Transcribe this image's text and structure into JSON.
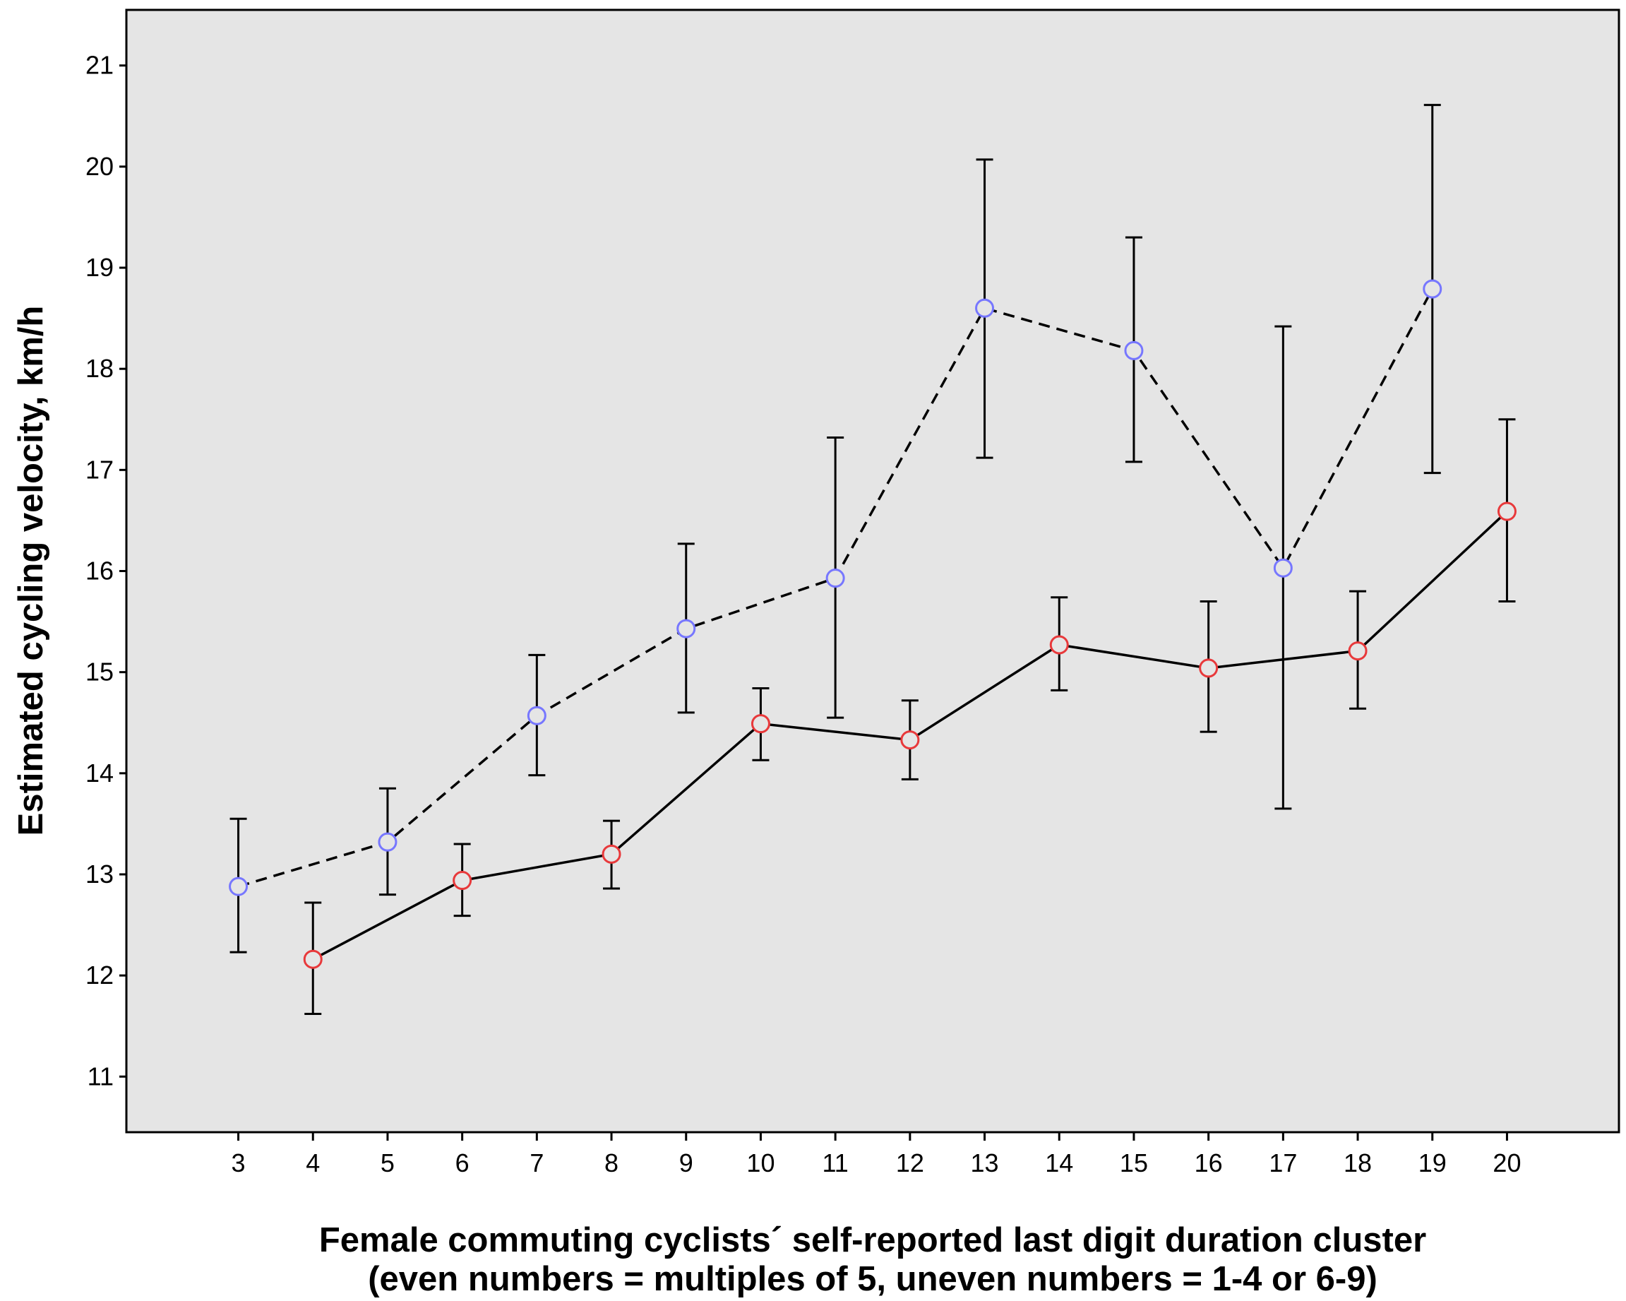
{
  "chart_data": {
    "type": "line",
    "title": "",
    "xlabel_line1": "Female commuting cyclists´ self-reported last digit duration cluster",
    "xlabel_line2": "(even numbers = multiples of 5, uneven numbers = 1-4 or 6-9)",
    "ylabel": "Estimated cycling velocity, km/h",
    "x_ticks": [
      3,
      4,
      5,
      6,
      7,
      8,
      9,
      10,
      11,
      12,
      13,
      14,
      15,
      16,
      17,
      18,
      19,
      20
    ],
    "y_ticks": [
      11,
      12,
      13,
      14,
      15,
      16,
      17,
      18,
      19,
      20,
      21
    ],
    "xlim": [
      1.5,
      21.5
    ],
    "ylim": [
      10.45,
      21.55
    ],
    "grid": false,
    "background": "#e5e5e5",
    "series": [
      {
        "style": "dashed",
        "line_color": "#000000",
        "marker": "circle-open",
        "marker_color": "#7777ff",
        "points": [
          {
            "x": 3,
            "y": 12.88,
            "lo": 12.23,
            "hi": 13.55
          },
          {
            "x": 5,
            "y": 13.32,
            "lo": 12.8,
            "hi": 13.85
          },
          {
            "x": 7,
            "y": 14.57,
            "lo": 13.98,
            "hi": 15.17
          },
          {
            "x": 9,
            "y": 15.43,
            "lo": 14.6,
            "hi": 16.27
          },
          {
            "x": 11,
            "y": 15.93,
            "lo": 14.55,
            "hi": 17.32
          },
          {
            "x": 13,
            "y": 18.6,
            "lo": 17.12,
            "hi": 20.07
          },
          {
            "x": 15,
            "y": 18.18,
            "lo": 17.08,
            "hi": 19.3
          },
          {
            "x": 17,
            "y": 16.03,
            "lo": 13.65,
            "hi": 18.42
          },
          {
            "x": 19,
            "y": 18.79,
            "lo": 16.97,
            "hi": 20.61
          }
        ]
      },
      {
        "style": "solid",
        "line_color": "#000000",
        "marker": "circle-open",
        "marker_color": "#e8393b",
        "points": [
          {
            "x": 4,
            "y": 12.16,
            "lo": 11.62,
            "hi": 12.72
          },
          {
            "x": 6,
            "y": 12.94,
            "lo": 12.59,
            "hi": 13.3
          },
          {
            "x": 8,
            "y": 13.2,
            "lo": 12.86,
            "hi": 13.53
          },
          {
            "x": 10,
            "y": 14.49,
            "lo": 14.13,
            "hi": 14.84
          },
          {
            "x": 12,
            "y": 14.33,
            "lo": 13.94,
            "hi": 14.72
          },
          {
            "x": 14,
            "y": 15.27,
            "lo": 14.82,
            "hi": 15.74
          },
          {
            "x": 16,
            "y": 15.04,
            "lo": 14.41,
            "hi": 15.7
          },
          {
            "x": 18,
            "y": 15.21,
            "lo": 14.64,
            "hi": 15.8
          },
          {
            "x": 20,
            "y": 16.59,
            "lo": 15.7,
            "hi": 17.5
          }
        ]
      }
    ]
  }
}
